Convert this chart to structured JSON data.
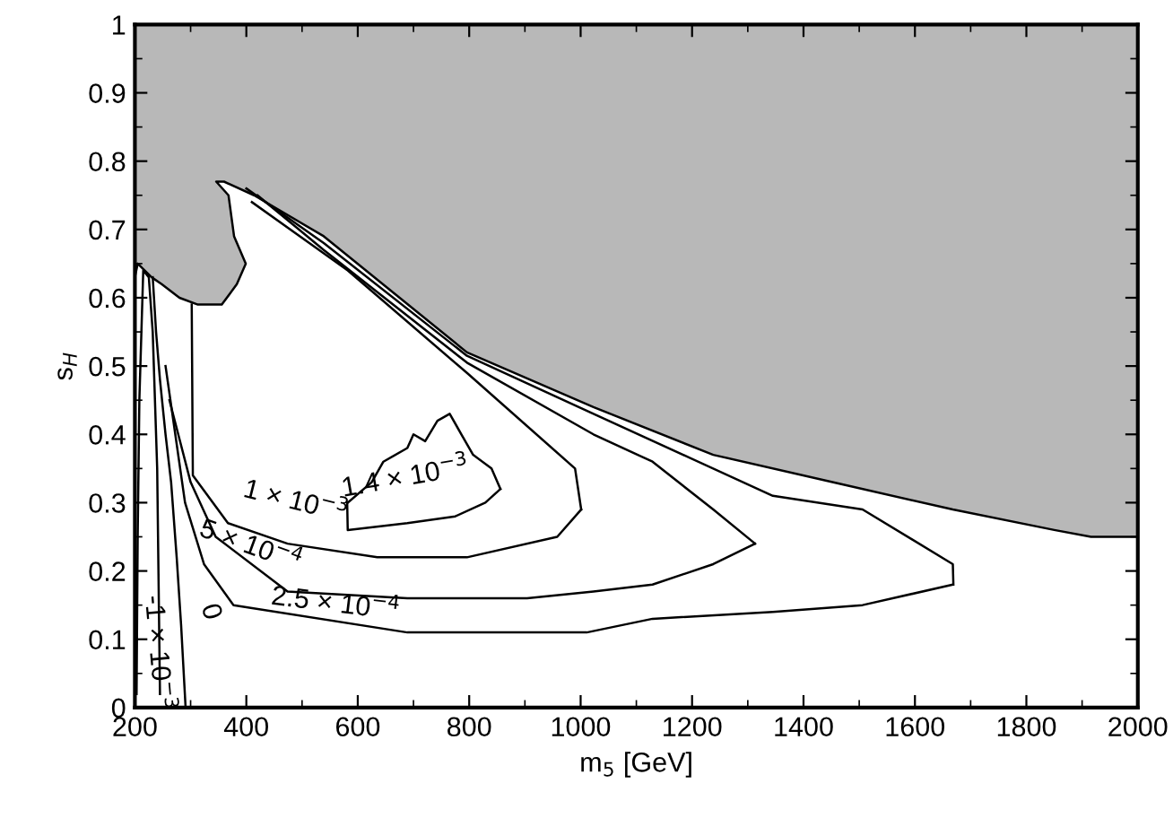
{
  "chart_data": {
    "type": "line",
    "xlabel": "m$_{5}$ [GeV]",
    "ylabel": "s$_{H}$",
    "xlim": [
      200,
      2000
    ],
    "ylim": [
      0,
      1
    ],
    "xticks": [
      200,
      400,
      600,
      800,
      1000,
      1200,
      1400,
      1600,
      1800,
      2000
    ],
    "yticks": [
      0,
      0.1,
      0.2,
      0.3,
      0.4,
      0.5,
      0.6,
      0.7,
      0.8,
      0.9,
      1
    ],
    "grid": false,
    "legend": false,
    "marker": "none",
    "line_style": "solid",
    "series": [
      {
        "color": "#000000",
        "x": [
          200,
          205,
          230,
          248,
          280,
          313,
          356,
          383,
          399,
          378,
          368,
          346,
          360,
          414,
          539,
          796,
          1023,
          1238,
          1452,
          1668,
          1850,
          1916,
          2000
        ],
        "values": [
          0.63,
          0.65,
          0.63,
          0.62,
          0.6,
          0.59,
          0.59,
          0.62,
          0.65,
          0.69,
          0.75,
          0.77,
          0.77,
          0.75,
          0.69,
          0.52,
          0.44,
          0.37,
          0.33,
          0.29,
          0.26,
          0.25,
          0.25
        ],
        "lower": [
          0.63,
          0.65,
          0.63,
          0.62,
          0.6,
          0.59,
          0.59,
          0.62,
          0.65,
          0.69,
          0.75,
          0.77,
          0.77,
          0.75,
          0.69,
          0.52,
          0.44,
          0.37,
          0.33,
          0.29,
          0.26,
          0.25,
          0.25
        ],
        "upper": [
          1,
          1,
          1,
          1,
          1,
          1,
          1,
          1,
          1,
          1,
          1,
          1,
          1,
          1,
          1,
          1,
          1,
          1,
          1,
          1,
          1,
          1,
          1
        ]
      },
      {
        "color": "#000000",
        "x": [
          581,
          582,
          689,
          775,
          829,
          856
        ],
        "values": [
          0.3,
          0.26,
          0.27,
          0.28,
          0.3,
          0.32
        ]
      },
      {
        "color": "#000000",
        "x": [
          582,
          625,
          646,
          689,
          700,
          721,
          743,
          765,
          786,
          807,
          840,
          856
        ],
        "values": [
          0.3,
          0.33,
          0.36,
          0.38,
          0.4,
          0.39,
          0.42,
          0.43,
          0.4,
          0.37,
          0.35,
          0.32
        ]
      },
      {
        "color": "#000000",
        "x": [
          302,
          304,
          367,
          474,
          635,
          796,
          958,
          1001
        ],
        "values": [
          0.59,
          0.34,
          0.27,
          0.24,
          0.22,
          0.22,
          0.25,
          0.29
        ]
      },
      {
        "color": "#000000",
        "x": [
          410,
          582,
          796,
          990,
          1001
        ],
        "values": [
          0.74,
          0.64,
          0.49,
          0.35,
          0.29
        ]
      },
      {
        "color": "#000000",
        "x": [
          262,
          300,
          345,
          474,
          689,
          904,
          1023,
          1129,
          1238,
          1313
        ],
        "values": [
          0.45,
          0.33,
          0.25,
          0.17,
          0.16,
          0.16,
          0.17,
          0.18,
          0.21,
          0.24
        ]
      },
      {
        "color": "#000000",
        "x": [
          420,
          539,
          796,
          1023,
          1129,
          1238,
          1313
        ],
        "values": [
          0.75,
          0.67,
          0.505,
          0.4,
          0.36,
          0.29,
          0.24
        ]
      },
      {
        "color": "#000000",
        "x": [
          255,
          290,
          324,
          377,
          689,
          1011,
          1129,
          1345,
          1506,
          1668
        ],
        "values": [
          0.5,
          0.3,
          0.21,
          0.15,
          0.11,
          0.11,
          0.13,
          0.14,
          0.15,
          0.18
        ]
      },
      {
        "color": "#000000",
        "x": [
          400,
          539,
          796,
          1023,
          1345,
          1506,
          1668,
          1669
        ],
        "values": [
          0.76,
          0.68,
          0.515,
          0.43,
          0.31,
          0.29,
          0.21,
          0.18
        ]
      },
      {
        "color": "#000000",
        "x": [
          232,
          238,
          245,
          255,
          265,
          275,
          283,
          291
        ],
        "values": [
          0.63,
          0.55,
          0.48,
          0.4,
          0.33,
          0.22,
          0.12,
          0.0
        ]
      },
      {
        "color": "#000000",
        "x": [
          203,
          205,
          208,
          215,
          225,
          232,
          240,
          245
        ],
        "values": [
          0.02,
          0.25,
          0.45,
          0.64,
          0.63,
          0.55,
          0.35,
          0.02
        ]
      }
    ],
    "annotations": [
      "1.4 × 10$^{−3}$",
      "1 × 10$^{−3}$",
      "5 × 10$^{−4}$",
      "2.5 × 10$^{−4}$",
      "0",
      "-1 × 10$^{−3}$"
    ]
  }
}
